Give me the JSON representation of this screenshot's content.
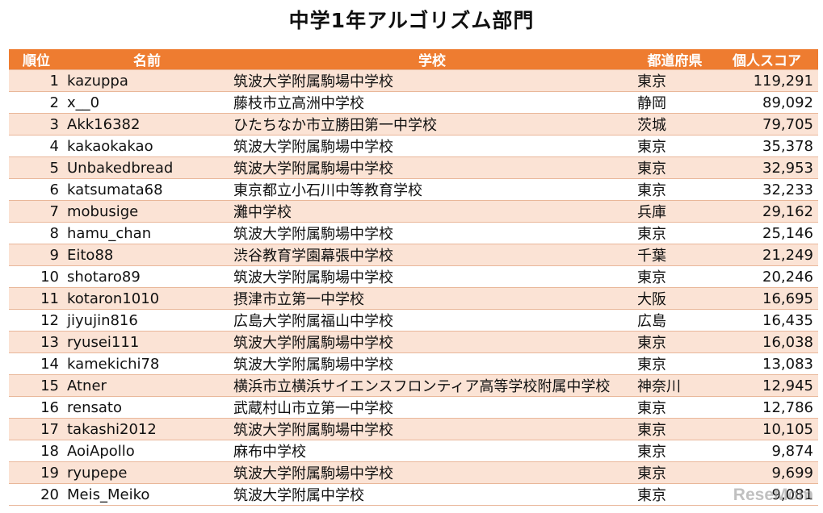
{
  "title": "中学1年アルゴリズム部門",
  "headers": {
    "rank": "順位",
    "name": "名前",
    "school": "学校",
    "prefecture": "都道府県",
    "score": "個人スコア"
  },
  "rows": [
    {
      "rank": "1",
      "name": "kazuppa",
      "school": "筑波大学附属駒場中学校",
      "prefecture": "東京",
      "score": "119,291"
    },
    {
      "rank": "2",
      "name": "x__0",
      "school": "藤枝市立高洲中学校",
      "prefecture": "静岡",
      "score": "89,092"
    },
    {
      "rank": "3",
      "name": "Akk16382",
      "school": "ひたちなか市立勝田第一中学校",
      "prefecture": "茨城",
      "score": "79,705"
    },
    {
      "rank": "4",
      "name": "kakaokakao",
      "school": "筑波大学附属駒場中学校",
      "prefecture": "東京",
      "score": "35,378"
    },
    {
      "rank": "5",
      "name": "Unbakedbread",
      "school": "筑波大学附属駒場中学校",
      "prefecture": "東京",
      "score": "32,953"
    },
    {
      "rank": "6",
      "name": "katsumata68",
      "school": "東京都立小石川中等教育学校",
      "prefecture": "東京",
      "score": "32,233"
    },
    {
      "rank": "7",
      "name": "mobusige",
      "school": "灘中学校",
      "prefecture": "兵庫",
      "score": "29,162"
    },
    {
      "rank": "8",
      "name": "hamu_chan",
      "school": "筑波大学附属駒場中学校",
      "prefecture": "東京",
      "score": "25,146"
    },
    {
      "rank": "9",
      "name": "Eito88",
      "school": "渋谷教育学園幕張中学校",
      "prefecture": "千葉",
      "score": "21,249"
    },
    {
      "rank": "10",
      "name": "shotaro89",
      "school": "筑波大学附属駒場中学校",
      "prefecture": "東京",
      "score": "20,246"
    },
    {
      "rank": "11",
      "name": "kotaron1010",
      "school": "摂津市立第一中学校",
      "prefecture": "大阪",
      "score": "16,695"
    },
    {
      "rank": "12",
      "name": "jiyujin816",
      "school": "広島大学附属福山中学校",
      "prefecture": "広島",
      "score": "16,435"
    },
    {
      "rank": "13",
      "name": "ryusei111",
      "school": "筑波大学附属駒場中学校",
      "prefecture": "東京",
      "score": "16,038"
    },
    {
      "rank": "14",
      "name": "kamekichi78",
      "school": "筑波大学附属駒場中学校",
      "prefecture": "東京",
      "score": "13,083"
    },
    {
      "rank": "15",
      "name": "Atner",
      "school": "横浜市立横浜サイエンスフロンティア高等学校附属中学校",
      "prefecture": "神奈川",
      "score": "12,945"
    },
    {
      "rank": "16",
      "name": "rensato",
      "school": "武蔵村山市立第一中学校",
      "prefecture": "東京",
      "score": "12,786"
    },
    {
      "rank": "17",
      "name": "takashi2012",
      "school": "筑波大学附属駒場中学校",
      "prefecture": "東京",
      "score": "10,105"
    },
    {
      "rank": "18",
      "name": "AoiApollo",
      "school": "麻布中学校",
      "prefecture": "東京",
      "score": "9,874"
    },
    {
      "rank": "19",
      "name": "ryupepe",
      "school": "筑波大学附属駒場中学校",
      "prefecture": "東京",
      "score": "9,699"
    },
    {
      "rank": "20",
      "name": "Meis_Meiko",
      "school": "筑波大学附属中学校",
      "prefecture": "東京",
      "score": "9,081"
    }
  ],
  "watermark": "ReseMom",
  "colors": {
    "header": "#ee7c30",
    "stripe": "#fbe3d5"
  }
}
